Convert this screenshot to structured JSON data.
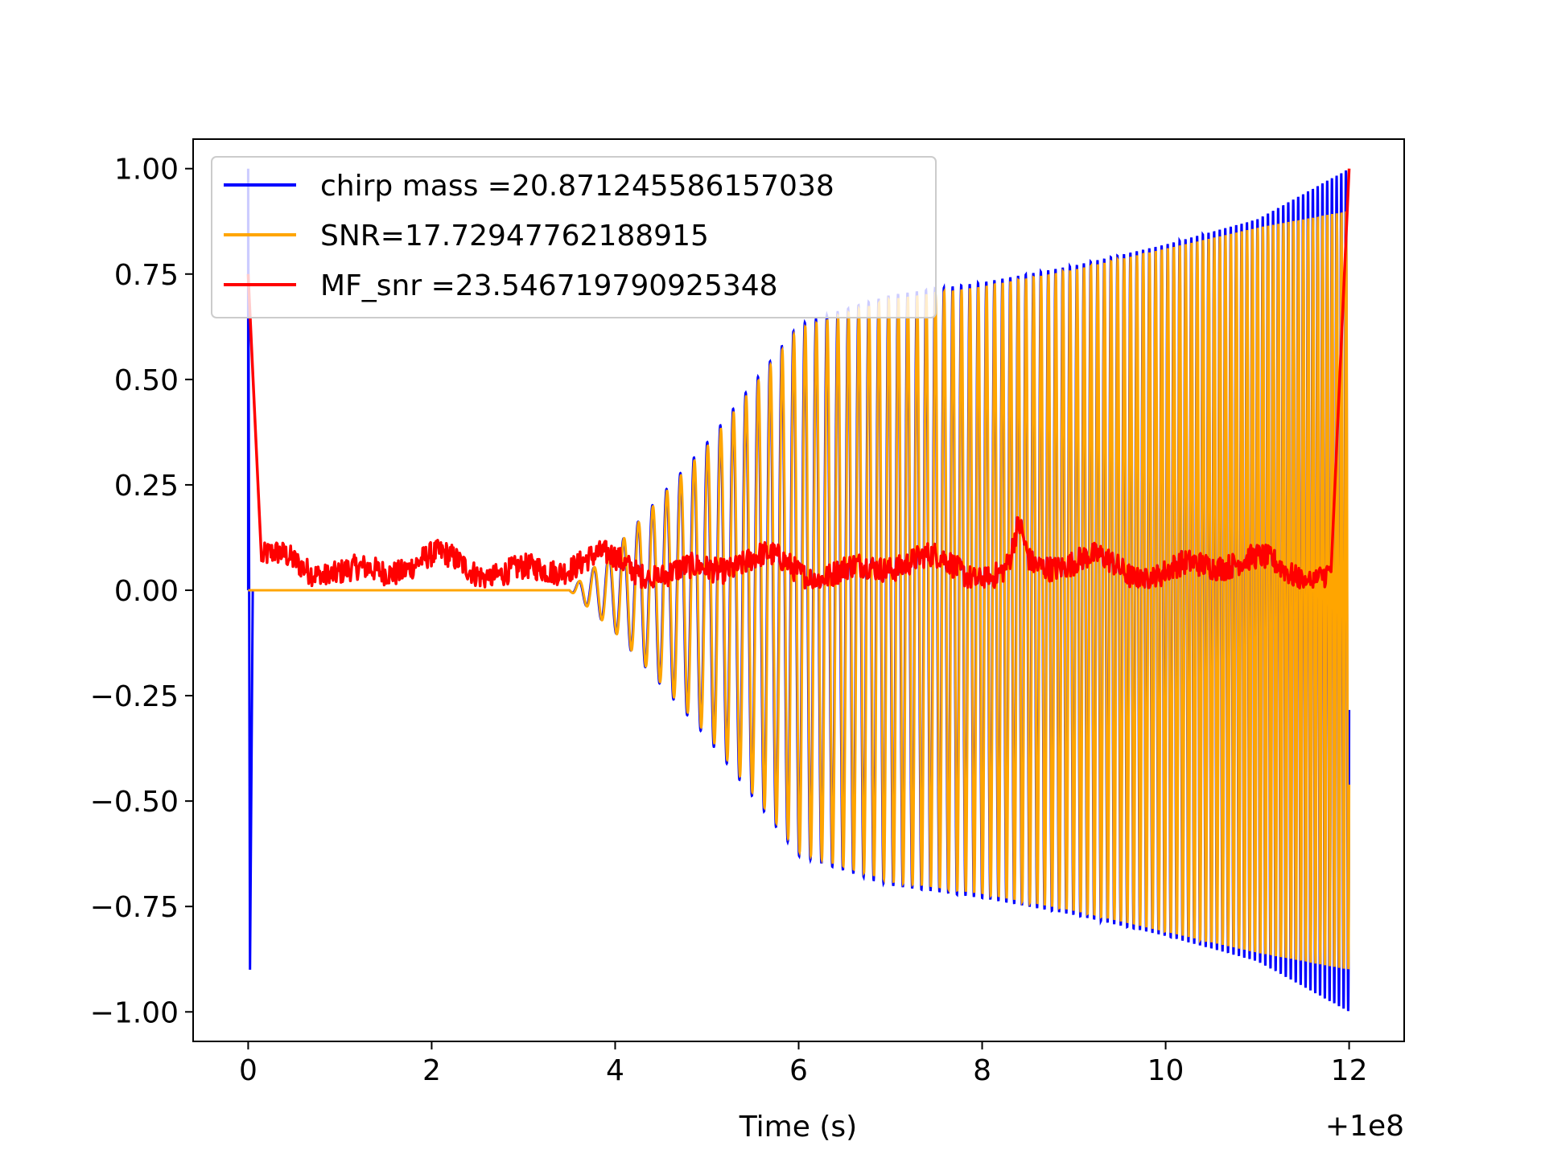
{
  "chart_data": {
    "type": "line",
    "title": "",
    "xlabel": "Time (s)",
    "ylabel": "",
    "x_offset_label": "+1e8",
    "xlim": [
      -0.6,
      12.6
    ],
    "ylim": [
      -1.07,
      1.07
    ],
    "xticks": [
      0,
      2,
      4,
      6,
      8,
      10,
      12
    ],
    "xtick_labels": [
      "0",
      "2",
      "4",
      "6",
      "8",
      "10",
      "12"
    ],
    "yticks": [
      1.0,
      0.75,
      0.5,
      0.25,
      0.0,
      -0.25,
      -0.5,
      -0.75,
      -1.0
    ],
    "ytick_labels": [
      "1.00",
      "0.75",
      "0.50",
      "0.25",
      "0.00",
      "−0.25",
      "−0.50",
      "−0.75",
      "−1.00"
    ],
    "grid": false,
    "legend_position": "top-left",
    "series": [
      {
        "name": "chirp mass =20.871245586157038",
        "color": "#0000ff",
        "description_of_shape": "spike to 1.0 and -0.9 at t=0, then chirp oscillation growing from t~3.5 to t=12 with envelope up to 1.0",
        "points": [
          [
            0.0,
            0.0
          ],
          [
            0.0,
            1.0
          ],
          [
            0.02,
            -0.9
          ],
          [
            0.05,
            0.0
          ],
          [
            3.5,
            0.0
          ],
          [
            4.0,
            0.1
          ],
          [
            5.0,
            0.35
          ],
          [
            6.0,
            0.63
          ],
          [
            7.0,
            0.7
          ],
          [
            8.0,
            0.73
          ],
          [
            9.0,
            0.77
          ],
          [
            10.0,
            0.82
          ],
          [
            11.0,
            0.88
          ],
          [
            12.0,
            1.0
          ]
        ]
      },
      {
        "name": "SNR=17.72947762188915",
        "color": "#ffa500",
        "description_of_shape": "zero until t~3.5, then chirp oscillation with envelope growing to ~0.9 at t=12",
        "points": [
          [
            0.0,
            0.0
          ],
          [
            3.5,
            0.0
          ],
          [
            4.0,
            0.1
          ],
          [
            5.0,
            0.34
          ],
          [
            6.0,
            0.62
          ],
          [
            7.0,
            0.69
          ],
          [
            8.0,
            0.72
          ],
          [
            9.0,
            0.76
          ],
          [
            10.0,
            0.81
          ],
          [
            11.0,
            0.86
          ],
          [
            12.0,
            0.9
          ]
        ]
      },
      {
        "name": "MF_snr =23.546719790925348",
        "color": "#ff0000",
        "description_of_shape": "starts ~0.75 at t=0, drops to ~0.05 by t=0.15, noisy around 0.03-0.12 with a peak ~0.19 at t~8.4, rises to 1.0 at t=12",
        "points": [
          [
            0.0,
            0.75
          ],
          [
            0.15,
            0.05
          ],
          [
            1.0,
            0.14
          ],
          [
            2.2,
            0.12
          ],
          [
            2.9,
            0.13
          ],
          [
            4.0,
            0.12
          ],
          [
            6.0,
            0.1
          ],
          [
            8.4,
            0.19
          ],
          [
            9.0,
            0.06
          ],
          [
            10.0,
            0.14
          ],
          [
            11.0,
            0.07
          ],
          [
            11.8,
            0.03
          ],
          [
            12.0,
            1.0
          ]
        ]
      }
    ]
  }
}
